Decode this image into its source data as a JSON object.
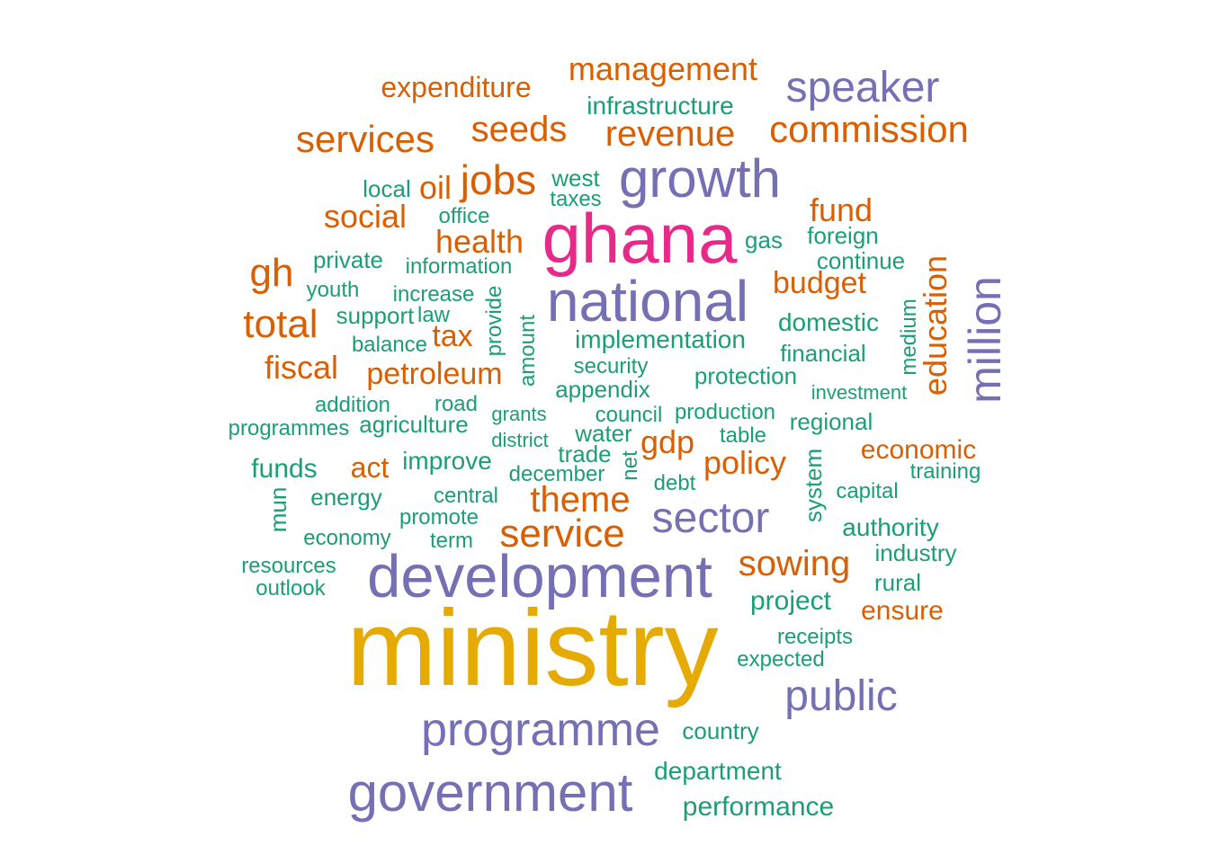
{
  "palette": {
    "tier1": "#e6ab02",
    "tier2": "#e7298a",
    "tier3": "#7570b3",
    "tier4": "#d95f02",
    "tier5": "#1b9e77"
  },
  "words": {
    "ministry": "ministry",
    "ghana": "ghana",
    "development": "development",
    "national": "national",
    "government": "government",
    "growth": "growth",
    "programme": "programme",
    "public": "public",
    "sector": "sector",
    "million": "million",
    "speaker": "speaker",
    "management": "management",
    "expenditure": "expenditure",
    "infrastructure": "infrastructure",
    "services": "services",
    "seeds": "seeds",
    "revenue": "revenue",
    "commission": "commission",
    "local": "local",
    "oil": "oil",
    "jobs": "jobs",
    "west": "west",
    "taxes": "taxes",
    "office": "office",
    "social": "social",
    "fund": "fund",
    "health": "health",
    "gas": "gas",
    "foreign": "foreign",
    "gh": "gh",
    "private": "private",
    "information": "information",
    "continue": "continue",
    "youth": "youth",
    "increase": "increase",
    "budget": "budget",
    "total": "total",
    "support": "support",
    "law": "law",
    "provide": "provide",
    "amount": "amount",
    "domestic": "domestic",
    "medium": "medium",
    "education": "education",
    "balance": "balance",
    "tax": "tax",
    "implementation": "implementation",
    "financial": "financial",
    "fiscal": "fiscal",
    "petroleum": "petroleum",
    "security": "security",
    "protection": "protection",
    "addition": "addition",
    "road": "road",
    "appendix": "appendix",
    "investment": "investment",
    "programmes": "programmes",
    "agriculture": "agriculture",
    "grants": "grants",
    "council": "council",
    "production": "production",
    "regional": "regional",
    "water": "water",
    "district": "district",
    "gdp": "gdp",
    "table": "table",
    "economic": "economic",
    "funds": "funds",
    "act": "act",
    "improve": "improve",
    "trade": "trade",
    "net": "net",
    "policy": "policy",
    "system": "system",
    "training": "training",
    "december": "december",
    "debt": "debt",
    "mun": "mun",
    "energy": "energy",
    "central": "central",
    "theme": "theme",
    "capital": "capital",
    "promote": "promote",
    "economy": "economy",
    "term": "term",
    "service": "service",
    "authority": "authority",
    "resources": "resources",
    "sowing": "sowing",
    "industry": "industry",
    "outlook": "outlook",
    "rural": "rural",
    "project": "project",
    "ensure": "ensure",
    "receipts": "receipts",
    "expected": "expected",
    "country": "country",
    "department": "department",
    "performance": "performance"
  }
}
